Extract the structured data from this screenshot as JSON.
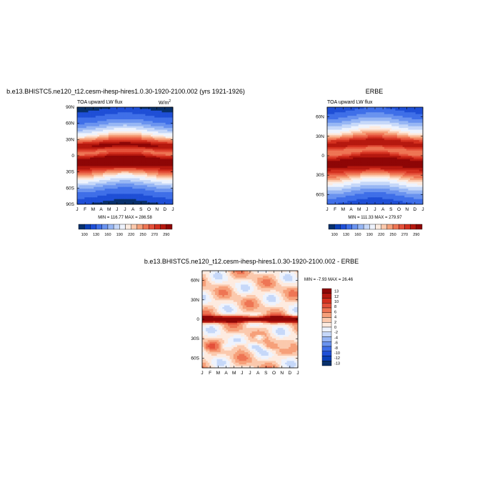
{
  "colors": {
    "ramp": [
      "#08306b",
      "#0a3fb8",
      "#1f4fd6",
      "#3f6fe8",
      "#6a93ef",
      "#97b6f4",
      "#c6d8f9",
      "#eef3fd",
      "#fdebe0",
      "#fbc9ad",
      "#f6a07a",
      "#ee7554",
      "#e4513a",
      "#d3301f",
      "#b5180f",
      "#8e0606"
    ],
    "diff": [
      "#08306b",
      "#0a3fb8",
      "#1f4fd6",
      "#3f6fe8",
      "#6a93ef",
      "#97b6f4",
      "#c6d8f9",
      "#eef3fd",
      "#fdebe0",
      "#fbc9ad",
      "#f6a07a",
      "#ee7554",
      "#e4513a",
      "#d3301f",
      "#b5180f",
      "#8e0606"
    ]
  },
  "chart_data": [
    {
      "type": "heatmap",
      "title": "b.e13.BHISTC5.ne120_t12.cesm-ihesp-hires1.0.30-1920-2100.002 (yrs 1921-1926)",
      "left_label": "TOA upward LW flux",
      "units": "W/m",
      "units_sup": "2",
      "x_ticks": [
        "J",
        "F",
        "M",
        "A",
        "M",
        "J",
        "J",
        "A",
        "S",
        "O",
        "N",
        "D",
        "J"
      ],
      "y_ticks": [
        "90N",
        "60N",
        "30N",
        "0",
        "30S",
        "60S",
        "90S"
      ],
      "stats": "MIN = 116.77 MAX = 286.58",
      "min": 116.77,
      "max": 286.58,
      "colorbar_labels": [
        "100",
        "130",
        "160",
        "190",
        "220",
        "250",
        "270",
        "290"
      ],
      "lat_range": [
        -90,
        90
      ]
    },
    {
      "type": "heatmap",
      "title": "ERBE",
      "left_label": "TOA upward LW flux",
      "x_ticks": [
        "J",
        "F",
        "M",
        "A",
        "M",
        "J",
        "J",
        "A",
        "S",
        "O",
        "N",
        "D",
        "J"
      ],
      "y_ticks": [
        "60N",
        "30N",
        "0",
        "30S",
        "60S"
      ],
      "stats": "MIN = 111.33 MAX = 279.97",
      "min": 111.33,
      "max": 279.97,
      "colorbar_labels": [
        "100",
        "130",
        "160",
        "190",
        "220",
        "250",
        "270",
        "290"
      ],
      "lat_range": [
        -75,
        75
      ]
    },
    {
      "type": "heatmap",
      "title": "b.e13.BHISTC5.ne120_t12.cesm-ihesp-hires1.0.30-1920-2100.002 - ERBE",
      "x_ticks": [
        "J",
        "F",
        "M",
        "A",
        "M",
        "J",
        "J",
        "A",
        "S",
        "O",
        "N",
        "D",
        "J"
      ],
      "y_ticks": [
        "60N",
        "30N",
        "0",
        "30S",
        "60S"
      ],
      "stats": "MIN =  -7.93 MAX =  26.46",
      "min": -7.93,
      "max": 26.46,
      "colorbar_labels": [
        "13",
        "12",
        "10",
        "8",
        "6",
        "4",
        "2",
        "0",
        "-2",
        "-4",
        "-6",
        "-8",
        "-10",
        "-12",
        "-13"
      ],
      "lat_range": [
        -75,
        75
      ]
    }
  ]
}
